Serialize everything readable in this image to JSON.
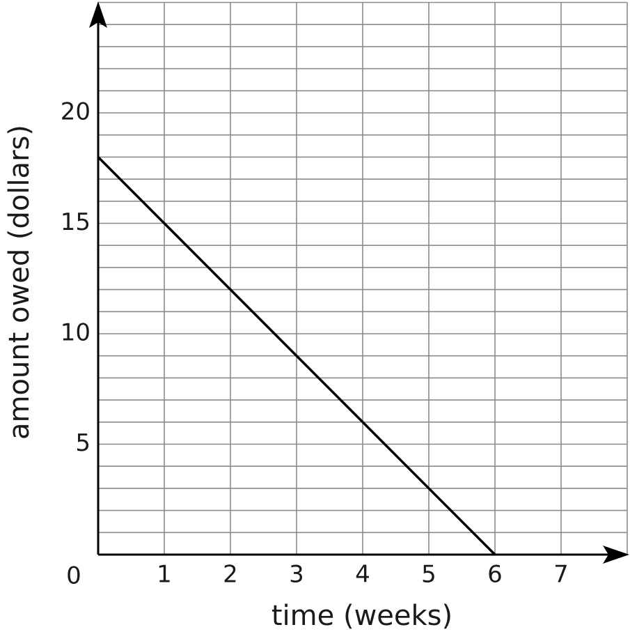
{
  "chart_data": {
    "type": "line",
    "x_label": "time (weeks)",
    "y_label": "amount owed (dollars)",
    "origin_label": "0",
    "x": [
      0,
      6
    ],
    "series": [
      {
        "color": "#000000",
        "values": [
          18,
          0
        ]
      }
    ],
    "xlim": [
      0,
      8
    ],
    "ylim": [
      0,
      25
    ],
    "xticks": [
      1,
      2,
      3,
      4,
      5,
      6,
      7
    ],
    "yticks": [
      5,
      10,
      15,
      20
    ],
    "xgrid": [
      1,
      2,
      3,
      4,
      5,
      6,
      7,
      8
    ],
    "ygrid": [
      1,
      2,
      3,
      4,
      5,
      6,
      7,
      8,
      9,
      10,
      11,
      12,
      13,
      14,
      15,
      16,
      17,
      18,
      19,
      20,
      21,
      22,
      23,
      24,
      25
    ],
    "grid": true
  }
}
